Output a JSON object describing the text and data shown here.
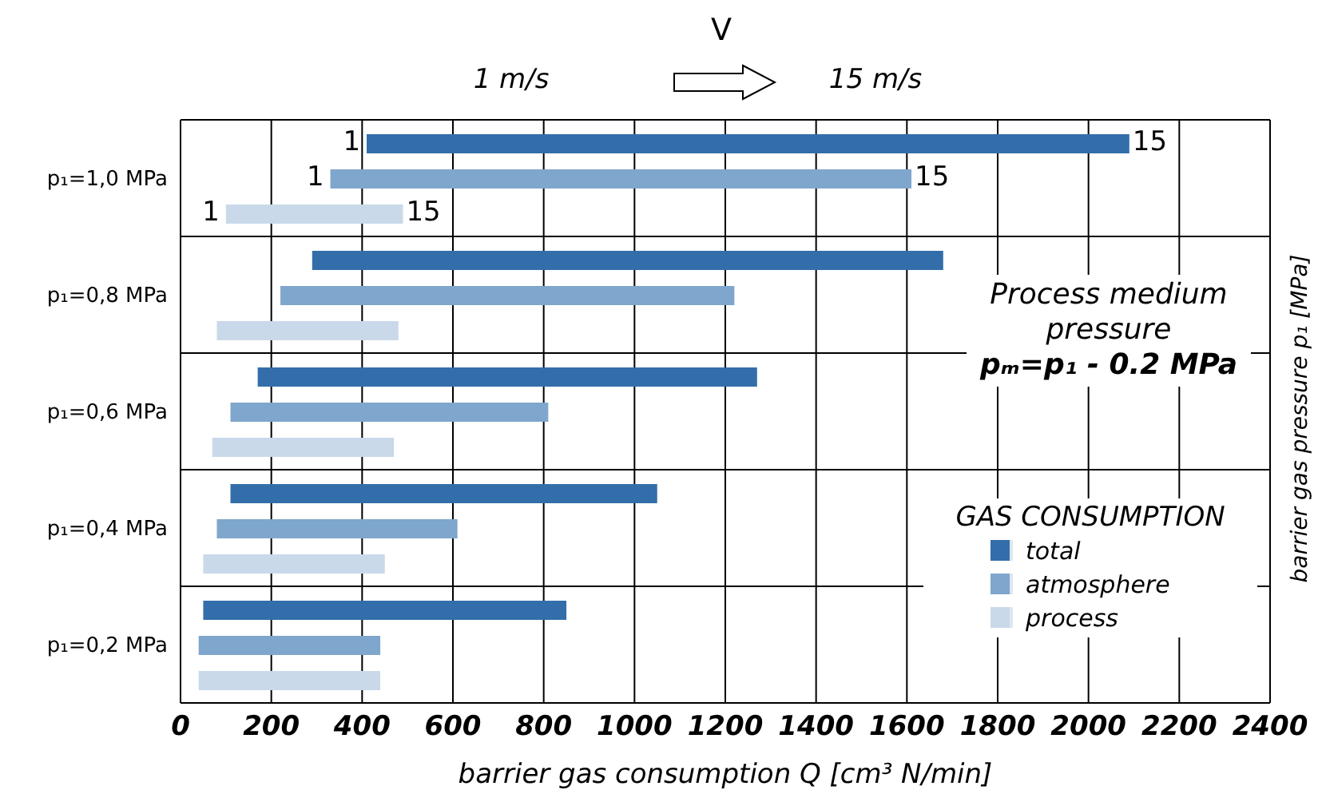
{
  "chart_data": {
    "type": "bar",
    "orientation": "horizontal",
    "categories": [
      "p₁=1,0 MPa",
      "p₁=0,8 MPa",
      "p₁=0,6 MPa",
      "p₁=0,4 MPa",
      "p₁=0,2 MPa"
    ],
    "series": [
      {
        "name": "total",
        "color": "#336eaa",
        "base": [
          410,
          290,
          170,
          110,
          50
        ],
        "values": [
          1680,
          1390,
          1100,
          940,
          800
        ]
      },
      {
        "name": "atmosphere",
        "color": "#7fa6cc",
        "base": [
          330,
          220,
          110,
          80,
          40
        ],
        "values": [
          1280,
          1000,
          700,
          530,
          400
        ]
      },
      {
        "name": "process",
        "color": "#c9d9ea",
        "base": [
          100,
          80,
          70,
          50,
          40
        ],
        "values": [
          390,
          400,
          400,
          400,
          400
        ]
      }
    ],
    "xlim": [
      0,
      2400
    ],
    "xticks": [
      0,
      200,
      400,
      600,
      800,
      1000,
      1200,
      1400,
      1600,
      1800,
      2000,
      2200,
      2400
    ],
    "xlabel": "barrier gas consumption Q [cm³ N/min]",
    "ylabel": "barrier gas pressure p₁ [MPa]",
    "legend_title": "GAS CONSUMPTION",
    "legend": "bottom right",
    "grid": true,
    "annotations": [
      "V",
      "1 m/s",
      "15 m/s",
      "Process medium pressure",
      "pₘ=p₁ - 0.2 MPa",
      "1",
      "15",
      "1",
      "15",
      "1",
      "15"
    ]
  }
}
